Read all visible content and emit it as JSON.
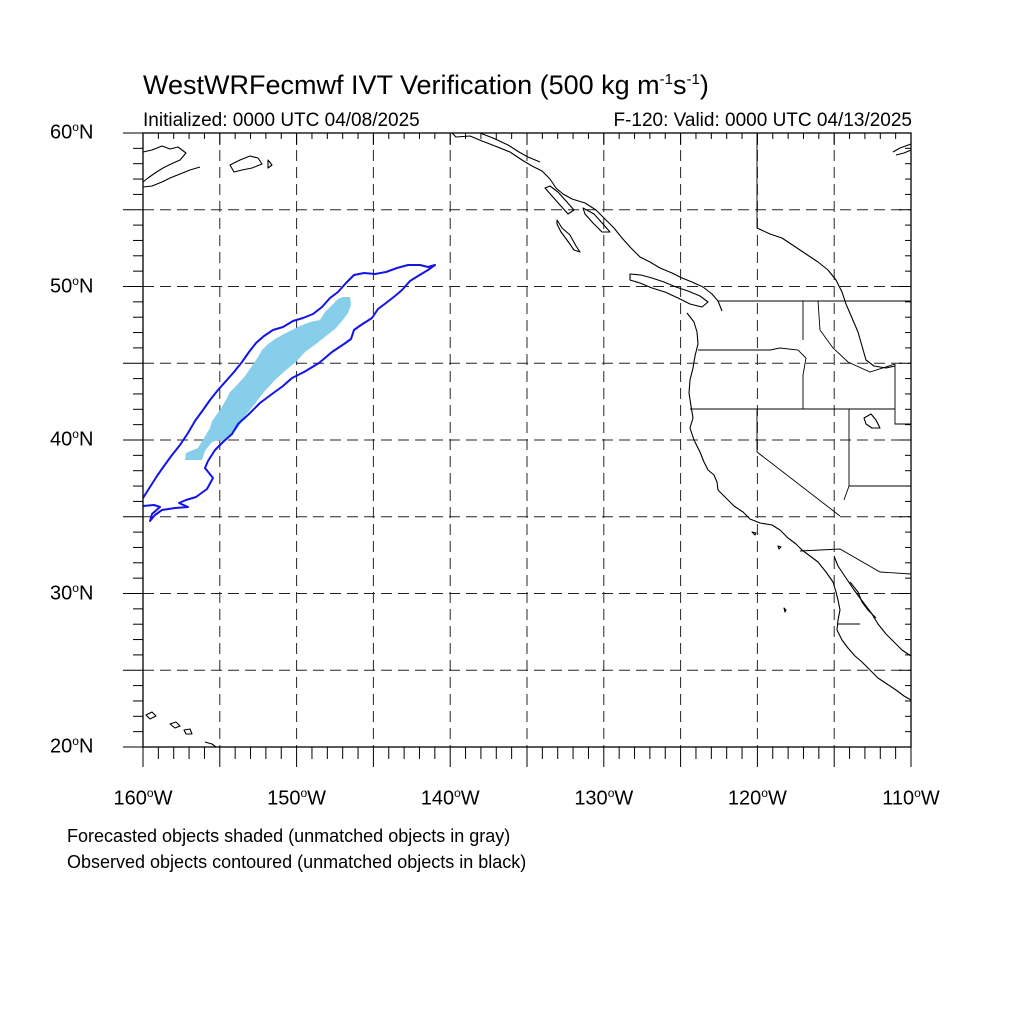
{
  "title": {
    "prefix": "WestWRFecmwf IVT Verification (500 kg m",
    "exp1": "-1",
    "mid": "s",
    "exp2": "-1",
    "suffix": ")"
  },
  "subtitle_left": "Initialized: 0000 UTC 04/08/2025",
  "subtitle_right": "F-120: Valid: 0000 UTC 04/13/2025",
  "degree_symbol": "o",
  "lat_labels": [
    {
      "num": "60",
      "hemi": "N"
    },
    {
      "num": "50",
      "hemi": "N"
    },
    {
      "num": "40",
      "hemi": "N"
    },
    {
      "num": "30",
      "hemi": "N"
    },
    {
      "num": "20",
      "hemi": "N"
    }
  ],
  "lon_labels": [
    {
      "num": "160",
      "hemi": "W"
    },
    {
      "num": "150",
      "hemi": "W"
    },
    {
      "num": "140",
      "hemi": "W"
    },
    {
      "num": "130",
      "hemi": "W"
    },
    {
      "num": "120",
      "hemi": "W"
    },
    {
      "num": "110",
      "hemi": "W"
    }
  ],
  "legend_notes": [
    "Forecasted objects shaded (unmatched objects in gray)",
    "Observed objects contoured (unmatched objects in black)"
  ],
  "map": {
    "lon_range": [
      -160,
      -110
    ],
    "lat_range": [
      20,
      60
    ],
    "grid_spacing_deg": 5,
    "grid_style": "dashed",
    "colors": {
      "forecast_shading": "#87ceeb",
      "observed_contour": "#1414e6",
      "coastline": "#000000"
    }
  }
}
